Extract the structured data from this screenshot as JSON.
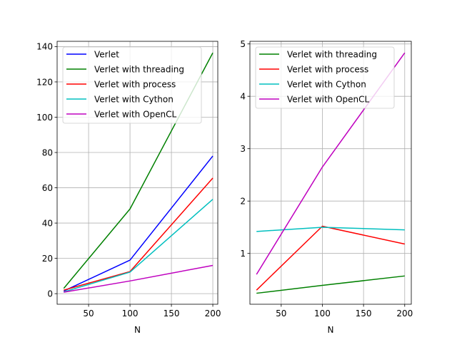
{
  "chart_data": [
    {
      "type": "line",
      "xlabel": "N",
      "ylabel": "",
      "xlim": [
        12,
        206
      ],
      "ylim": [
        -6,
        143
      ],
      "xticks": [
        50,
        100,
        150,
        200
      ],
      "yticks": [
        0,
        20,
        40,
        60,
        80,
        100,
        120,
        140
      ],
      "grid": true,
      "legend_position": "upper-left",
      "x": [
        20,
        100,
        200
      ],
      "series": [
        {
          "name": "Verlet",
          "color": "#0000ff",
          "values": [
            1.5,
            19,
            78
          ]
        },
        {
          "name": "Verlet with threading",
          "color": "#008000",
          "values": [
            3,
            48,
            136.5
          ]
        },
        {
          "name": "Verlet with process",
          "color": "#ff0000",
          "values": [
            2,
            12.5,
            65.5
          ]
        },
        {
          "name": "Verlet with Cython",
          "color": "#00bfbf",
          "values": [
            1,
            12.2,
            53.5
          ]
        },
        {
          "name": "Verlet with OpenCL",
          "color": "#bf00bf",
          "values": [
            0.8,
            7.2,
            16
          ]
        }
      ]
    },
    {
      "type": "line",
      "xlabel": "N",
      "ylabel": "",
      "xlim": [
        12,
        208
      ],
      "ylim": [
        0.03,
        5.05
      ],
      "xticks": [
        50,
        100,
        150,
        200
      ],
      "yticks": [
        1,
        2,
        3,
        4,
        5
      ],
      "grid": true,
      "legend_position": "upper-left",
      "x": [
        20,
        100,
        200
      ],
      "series": [
        {
          "name": "Verlet with threading",
          "color": "#008000",
          "values": [
            0.24,
            0.39,
            0.57
          ]
        },
        {
          "name": "Verlet with process",
          "color": "#ff0000",
          "values": [
            0.3,
            1.52,
            1.18
          ]
        },
        {
          "name": "Verlet with Cython",
          "color": "#00bfbf",
          "values": [
            1.42,
            1.5,
            1.45
          ]
        },
        {
          "name": "Verlet with OpenCL",
          "color": "#bf00bf",
          "values": [
            0.6,
            2.65,
            4.83
          ]
        }
      ]
    }
  ]
}
